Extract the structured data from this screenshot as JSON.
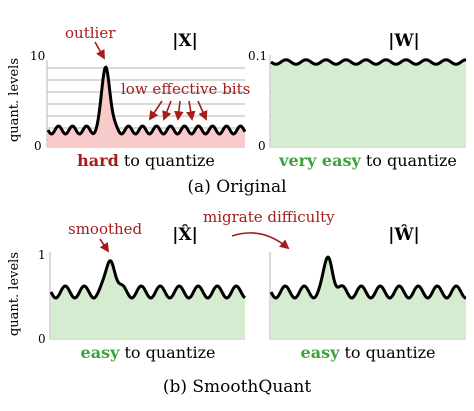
{
  "colors": {
    "accent_red": "#a51c1c",
    "accent_green": "#3aa43a",
    "red_fill": "#f9caca",
    "green_fill": "#d6ecd0",
    "grid": "#b5b5b5"
  },
  "top": {
    "ylabel": "quant. levels",
    "x_panel": {
      "title": "|X|",
      "ymax": "10",
      "ymin": "0",
      "outlier_annotation": "outlier",
      "bits_annotation": "low effective bits",
      "caption_bold": "hard",
      "caption_rest": " to quantize"
    },
    "w_panel": {
      "title": "|W|",
      "ymax": "0.1",
      "ymin": "0",
      "caption_bold": "very easy",
      "caption_rest": " to quantize"
    },
    "subcaption": "(a) Original"
  },
  "bottom": {
    "ylabel": "quant. levels",
    "x_panel": {
      "title": "|X̂|",
      "ymax": "1",
      "ymin": "0",
      "smoothed_annotation": "smoothed",
      "caption_bold": "easy",
      "caption_rest": " to quantize"
    },
    "w_panel": {
      "title": "|Ŵ|",
      "caption_bold": "easy",
      "caption_rest": " to quantize"
    },
    "migrate_annotation": "migrate difficulty",
    "subcaption": "(b) SmoothQuant"
  }
}
